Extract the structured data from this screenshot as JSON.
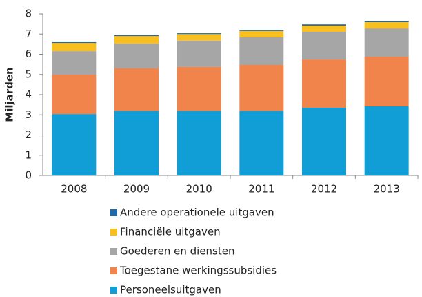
{
  "chart_data": {
    "type": "stacked_bar",
    "y_label": "Miljarden",
    "categories": [
      "2008",
      "2009",
      "2010",
      "2011",
      "2012",
      "2013"
    ],
    "series": [
      {
        "name": "Personeelsuitgaven",
        "color": "#119ed6",
        "values": [
          3.04,
          3.2,
          3.2,
          3.2,
          3.35,
          3.42
        ]
      },
      {
        "name": "Toegestane werkingssubsidies",
        "color": "#f0844a",
        "values": [
          1.95,
          2.1,
          2.17,
          2.27,
          2.39,
          2.46
        ]
      },
      {
        "name": "Goederen en diensten",
        "color": "#a6a6a6",
        "values": [
          1.16,
          1.23,
          1.3,
          1.37,
          1.37,
          1.4
        ]
      },
      {
        "name": "Financiële uitgaven",
        "color": "#f9bf1e",
        "values": [
          0.41,
          0.37,
          0.33,
          0.31,
          0.31,
          0.31
        ]
      },
      {
        "name": "Andere operationele uitgaven",
        "color": "#1f6aa7",
        "values": [
          0.04,
          0.04,
          0.04,
          0.05,
          0.06,
          0.06
        ]
      }
    ],
    "ylim": [
      0,
      8
    ],
    "yticks": [
      0,
      1,
      2,
      3,
      4,
      5,
      6,
      7,
      8
    ],
    "grid": false
  }
}
